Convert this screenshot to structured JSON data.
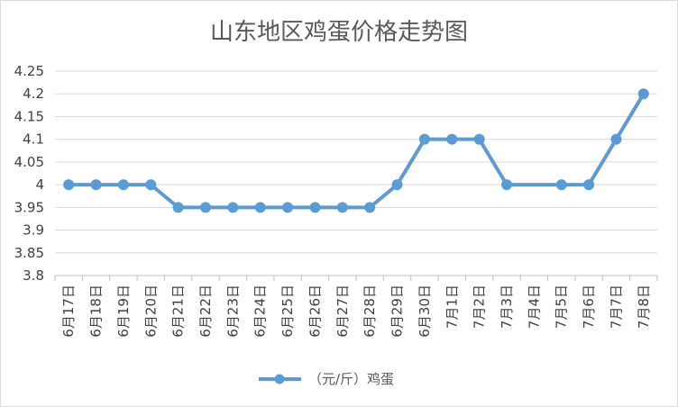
{
  "chart_data": {
    "type": "line",
    "title": "山东地区鸡蛋价格走势图",
    "xlabel": "",
    "ylabel": "",
    "ylim": [
      3.8,
      4.25
    ],
    "yticks": [
      "3.8",
      "3.85",
      "3.9",
      "3.95",
      "4",
      "4.05",
      "4.1",
      "4.15",
      "4.2",
      "4.25"
    ],
    "grid": true,
    "legend_position": "bottom",
    "categories": [
      "6月17日",
      "6月18日",
      "6月19日",
      "6月20日",
      "6月21日",
      "6月22日",
      "6月23日",
      "6月24日",
      "6月25日",
      "6月26日",
      "6月27日",
      "6月28日",
      "6月29日",
      "6月30日",
      "7月1日",
      "7月2日",
      "7月3日",
      "7月4日",
      "7月5日",
      "7月6日",
      "7月7日",
      "7月8日"
    ],
    "series": [
      {
        "name": "（元/斤）鸡蛋",
        "color": "#5B9BD5",
        "values": [
          4,
          4,
          4,
          4,
          3.95,
          3.95,
          3.95,
          3.95,
          3.95,
          3.95,
          3.95,
          3.95,
          4,
          4.1,
          4.1,
          4.1,
          4,
          null,
          4,
          4,
          4.1,
          4.2
        ]
      }
    ]
  }
}
